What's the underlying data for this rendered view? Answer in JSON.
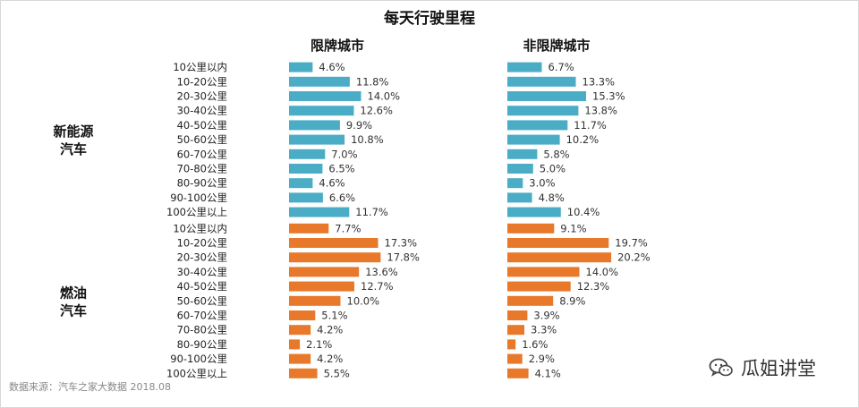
{
  "chart_data": {
    "type": "bar",
    "orientation": "horizontal",
    "title": "每天行驶里程",
    "panels": [
      "限牌城市",
      "非限牌城市"
    ],
    "categories": [
      "10公里以内",
      "10-20公里",
      "20-30公里",
      "30-40公里",
      "40-50公里",
      "50-60公里",
      "60-70公里",
      "70-80公里",
      "80-90公里",
      "90-100公里",
      "100公里以上"
    ],
    "value_suffix": "%",
    "groups": [
      {
        "name": "新能源\n汽车",
        "name_lines": [
          "新能源",
          "汽车"
        ],
        "color": "#4BACC6",
        "values": {
          "限牌城市": [
            4.6,
            11.8,
            14.0,
            12.6,
            9.9,
            10.8,
            7.0,
            6.5,
            4.6,
            6.6,
            11.7
          ],
          "非限牌城市": [
            6.7,
            13.3,
            15.3,
            13.8,
            11.7,
            10.2,
            5.8,
            5.0,
            3.0,
            4.8,
            10.4
          ]
        }
      },
      {
        "name": "燃油\n汽车",
        "name_lines": [
          "燃油",
          "汽车"
        ],
        "color": "#E8782A",
        "values": {
          "限牌城市": [
            7.7,
            17.3,
            17.8,
            13.6,
            12.7,
            10.0,
            5.1,
            4.2,
            2.1,
            4.2,
            5.5
          ],
          "非限牌城市": [
            9.1,
            19.7,
            20.2,
            14.0,
            12.3,
            8.9,
            3.9,
            3.3,
            1.6,
            2.9,
            4.1
          ]
        }
      }
    ],
    "source": "数据来源：汽车之家大数据 2018.08",
    "grid": false,
    "legend": "none"
  },
  "watermark": {
    "icon": "wechat-icon",
    "text": "瓜姐讲堂"
  }
}
